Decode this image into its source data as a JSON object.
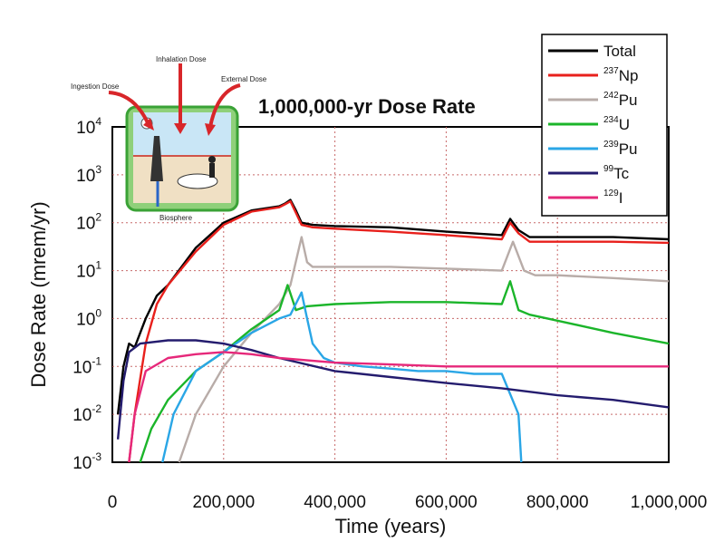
{
  "chart_data": {
    "type": "line",
    "title": "1,000,000-yr Dose Rate",
    "xlabel": "Time (years)",
    "ylabel": "Dose Rate (mrem/yr)",
    "xlim": [
      0,
      1000000
    ],
    "ylim": [
      0.001,
      10000
    ],
    "y_scale": "log",
    "grid": true,
    "legend_position": "top-right",
    "x_tick_labels": [
      "0",
      "200,000",
      "400,000",
      "600,000",
      "800,000",
      "1,000,000"
    ],
    "x_ticks": [
      0,
      200000,
      400000,
      600000,
      800000,
      1000000
    ],
    "y_ticks": [
      {
        "value": 0.001,
        "base": "10",
        "exp": "-3"
      },
      {
        "value": 0.01,
        "base": "10",
        "exp": "-2"
      },
      {
        "value": 0.1,
        "base": "10",
        "exp": "-1"
      },
      {
        "value": 1,
        "base": "10",
        "exp": "0"
      },
      {
        "value": 10,
        "base": "10",
        "exp": "1"
      },
      {
        "value": 100,
        "base": "10",
        "exp": "2"
      },
      {
        "value": 1000,
        "base": "10",
        "exp": "3"
      },
      {
        "value": 10000,
        "base": "10",
        "exp": "4"
      }
    ],
    "series": [
      {
        "name": "Total",
        "label_mass": "",
        "label_symbol": "Total",
        "color": "#000000",
        "x": [
          10000,
          20000,
          30000,
          40000,
          60000,
          80000,
          100000,
          150000,
          200000,
          250000,
          300000,
          310000,
          320000,
          330000,
          340000,
          360000,
          400000,
          500000,
          600000,
          700000,
          715000,
          730000,
          750000,
          800000,
          900000,
          1000000
        ],
        "y": [
          0.01,
          0.1,
          0.3,
          0.25,
          1.0,
          3.0,
          5.0,
          30,
          100,
          180,
          220,
          250,
          300,
          180,
          100,
          90,
          85,
          80,
          65,
          55,
          120,
          70,
          50,
          50,
          50,
          45
        ]
      },
      {
        "name": "237Np",
        "label_mass": "237",
        "label_symbol": "Np",
        "color": "#e8201c",
        "x": [
          30000,
          40000,
          60000,
          80000,
          100000,
          150000,
          200000,
          250000,
          300000,
          310000,
          320000,
          330000,
          340000,
          360000,
          400000,
          500000,
          600000,
          700000,
          715000,
          730000,
          750000,
          800000,
          900000,
          1000000
        ],
        "y": [
          0.001,
          0.01,
          0.3,
          2.0,
          5.0,
          25,
          90,
          170,
          210,
          240,
          280,
          160,
          90,
          80,
          75,
          65,
          55,
          45,
          100,
          60,
          40,
          40,
          40,
          38
        ]
      },
      {
        "name": "242Pu",
        "label_mass": "242",
        "label_symbol": "Pu",
        "color": "#b8aca8",
        "x": [
          120000,
          150000,
          200000,
          250000,
          300000,
          320000,
          340000,
          350000,
          360000,
          400000,
          500000,
          600000,
          700000,
          720000,
          740000,
          760000,
          800000,
          900000,
          1000000
        ],
        "y": [
          0.001,
          0.01,
          0.1,
          0.5,
          2.0,
          5.0,
          50,
          15,
          12,
          12,
          12,
          11,
          10,
          40,
          10,
          8,
          8,
          7,
          6
        ]
      },
      {
        "name": "234U",
        "label_mass": "234",
        "label_symbol": "U",
        "color": "#1bb52a",
        "x": [
          50000,
          70000,
          100000,
          150000,
          200000,
          250000,
          300000,
          315000,
          330000,
          350000,
          400000,
          500000,
          600000,
          700000,
          715000,
          730000,
          750000,
          800000,
          900000,
          1000000
        ],
        "y": [
          0.001,
          0.005,
          0.02,
          0.08,
          0.2,
          0.6,
          1.5,
          5.0,
          1.5,
          1.8,
          2.0,
          2.2,
          2.2,
          2.0,
          6.0,
          1.5,
          1.2,
          0.9,
          0.5,
          0.3
        ]
      },
      {
        "name": "239Pu",
        "label_mass": "239",
        "label_symbol": "Pu",
        "color": "#2aa6e6",
        "x": [
          90000,
          110000,
          150000,
          200000,
          250000,
          300000,
          320000,
          340000,
          350000,
          360000,
          380000,
          400000,
          450000,
          500000,
          550000,
          600000,
          650000,
          700000,
          730000,
          735000
        ],
        "y": [
          0.001,
          0.01,
          0.08,
          0.2,
          0.5,
          1.0,
          1.2,
          3.5,
          1.0,
          0.3,
          0.15,
          0.12,
          0.1,
          0.09,
          0.08,
          0.08,
          0.07,
          0.07,
          0.01,
          0.001
        ]
      },
      {
        "name": "99Tc",
        "label_mass": "99",
        "label_symbol": "Tc",
        "color": "#241c6e",
        "x": [
          10000,
          20000,
          30000,
          50000,
          100000,
          150000,
          200000,
          250000,
          300000,
          400000,
          500000,
          600000,
          700000,
          800000,
          900000,
          1000000
        ],
        "y": [
          0.003,
          0.05,
          0.2,
          0.3,
          0.35,
          0.35,
          0.3,
          0.22,
          0.15,
          0.08,
          0.06,
          0.045,
          0.035,
          0.025,
          0.02,
          0.014
        ]
      },
      {
        "name": "129I",
        "label_mass": "129",
        "label_symbol": "I",
        "color": "#e6287a",
        "x": [
          30000,
          40000,
          60000,
          100000,
          150000,
          200000,
          250000,
          300000,
          400000,
          500000,
          600000,
          700000,
          800000,
          900000,
          1000000
        ],
        "y": [
          0.001,
          0.01,
          0.08,
          0.15,
          0.18,
          0.2,
          0.18,
          0.15,
          0.12,
          0.11,
          0.1,
          0.1,
          0.1,
          0.1,
          0.1
        ]
      }
    ]
  },
  "inset": {
    "ingestion_label": "Ingestion Dose",
    "inhalation_label": "Inhalation Dose",
    "external_label": "External Dose",
    "biosphere_label": "Biosphere"
  }
}
